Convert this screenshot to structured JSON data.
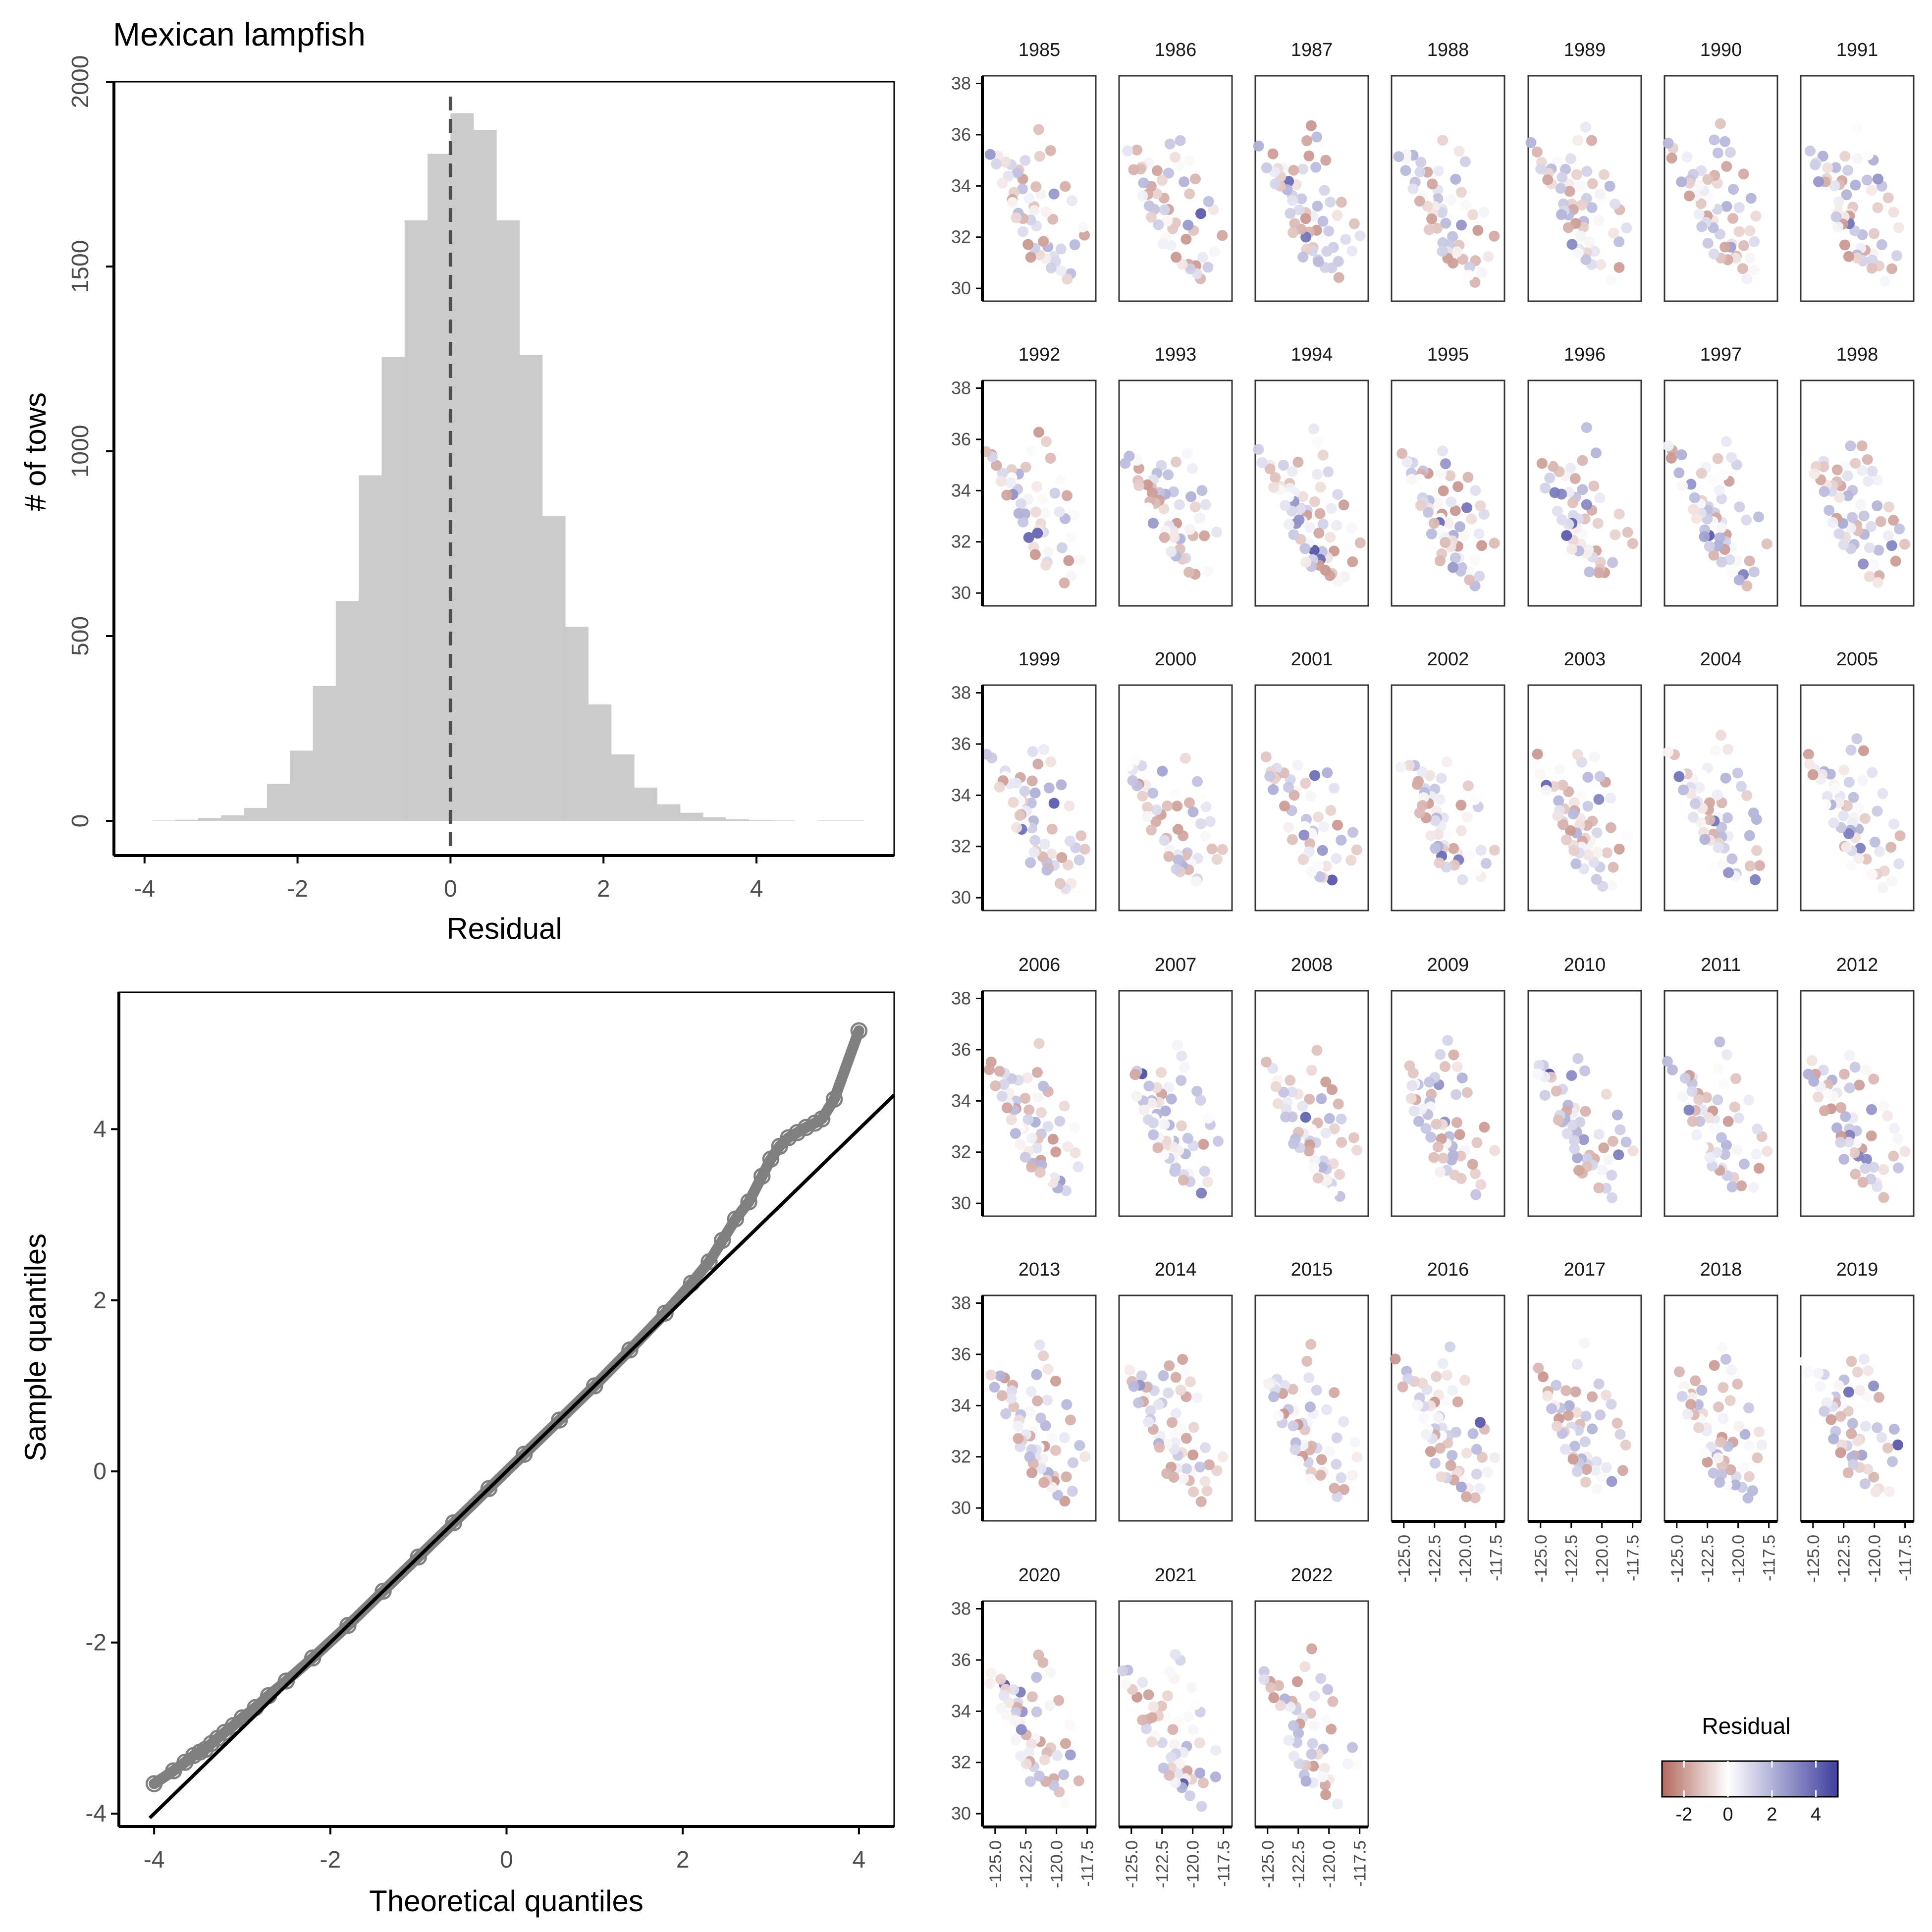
{
  "title": "Mexican lampfish",
  "colors": {
    "bar_fill": "#cbcbcb",
    "qq_point": "#808080",
    "neg": "#b2695f",
    "mid": "#ffffff",
    "pos": "#3f3f9f",
    "axis": "#000000",
    "ref_line": "#4d4d4d"
  },
  "chart_data": [
    {
      "type": "bar",
      "title": "Mexican lampfish",
      "xlabel": "Residual",
      "ylabel": "# of tows",
      "xlim": [
        -4.4,
        5.8
      ],
      "ylim": [
        0,
        2000
      ],
      "x_ticks": [
        "-4",
        "-2",
        "0",
        "2",
        "4"
      ],
      "y_ticks": [
        "0",
        "500",
        "1000",
        "1500",
        "2000"
      ],
      "bin_width": 0.3,
      "bin_starts": [
        -3.9,
        -3.6,
        -3.3,
        -3.0,
        -2.7,
        -2.4,
        -2.1,
        -1.8,
        -1.5,
        -1.2,
        -0.9,
        -0.6,
        -0.3,
        0.0,
        0.3,
        0.6,
        0.9,
        1.2,
        1.5,
        1.8,
        2.1,
        2.4,
        2.7,
        3.0,
        3.3,
        3.6,
        3.9,
        4.2,
        4.5,
        4.8,
        5.1
      ],
      "values": [
        1,
        3,
        8,
        15,
        35,
        100,
        190,
        365,
        595,
        935,
        1255,
        1625,
        1805,
        1915,
        1870,
        1625,
        1260,
        825,
        525,
        315,
        180,
        90,
        45,
        22,
        10,
        4,
        2,
        1,
        0,
        1,
        1
      ],
      "reference_line_x": 0
    },
    {
      "type": "scatter",
      "xlabel": "Theoretical quantiles",
      "ylabel": "Sample quantiles",
      "xlim": [
        -4.4,
        4.4
      ],
      "ylim": [
        -4.15,
        5.6
      ],
      "x_ticks": [
        "-4",
        "-2",
        "0",
        "2",
        "4"
      ],
      "y_ticks": [
        "-4",
        "-2",
        "0",
        "2",
        "4"
      ],
      "reference_line": {
        "slope": 1.0,
        "intercept": 0
      },
      "points_x": [
        -4.0,
        -3.78,
        -3.65,
        -3.55,
        -3.48,
        -3.42,
        -3.35,
        -3.28,
        -3.2,
        -3.1,
        -3.0,
        -2.85,
        -2.7,
        -2.5,
        -2.2,
        -1.8,
        -1.4,
        -1.0,
        -0.6,
        -0.2,
        0.2,
        0.6,
        1.0,
        1.4,
        1.8,
        2.1,
        2.3,
        2.45,
        2.6,
        2.75,
        2.9,
        3.0,
        3.1,
        3.2,
        3.3,
        3.4,
        3.5,
        3.58,
        3.72,
        4.0
      ],
      "points_y": [
        -3.65,
        -3.5,
        -3.4,
        -3.32,
        -3.28,
        -3.25,
        -3.18,
        -3.12,
        -3.05,
        -2.97,
        -2.88,
        -2.76,
        -2.62,
        -2.45,
        -2.18,
        -1.8,
        -1.4,
        -1.0,
        -0.6,
        -0.2,
        0.2,
        0.6,
        1.0,
        1.42,
        1.85,
        2.2,
        2.45,
        2.7,
        2.95,
        3.15,
        3.45,
        3.65,
        3.8,
        3.9,
        3.96,
        4.02,
        4.07,
        4.12,
        4.35,
        5.15
      ]
    },
    {
      "type": "scatter",
      "facet_by": "year",
      "xlim": [
        -126.0,
        -116.8
      ],
      "ylim": [
        29.5,
        38.3
      ],
      "x_ticks": [
        "-125.0",
        "-122.5",
        "-120.0",
        "-117.5"
      ],
      "y_ticks": [
        "30",
        "32",
        "34",
        "36",
        "38"
      ],
      "facets": [
        "1985",
        "1986",
        "1987",
        "1988",
        "1989",
        "1990",
        "1991",
        "1992",
        "1993",
        "1994",
        "1995",
        "1996",
        "1997",
        "1998",
        "1999",
        "2000",
        "2001",
        "2002",
        "2003",
        "2004",
        "2005",
        "2006",
        "2007",
        "2008",
        "2009",
        "2010",
        "2011",
        "2012",
        "2013",
        "2014",
        "2015",
        "2016",
        "2017",
        "2018",
        "2019",
        "2020",
        "2021",
        "2022"
      ],
      "legend": {
        "title": "Residual",
        "position": "bottom-right",
        "range": [
          -3,
          5
        ],
        "tick_labels": [
          "-2",
          "0",
          "2",
          "4"
        ]
      }
    }
  ]
}
